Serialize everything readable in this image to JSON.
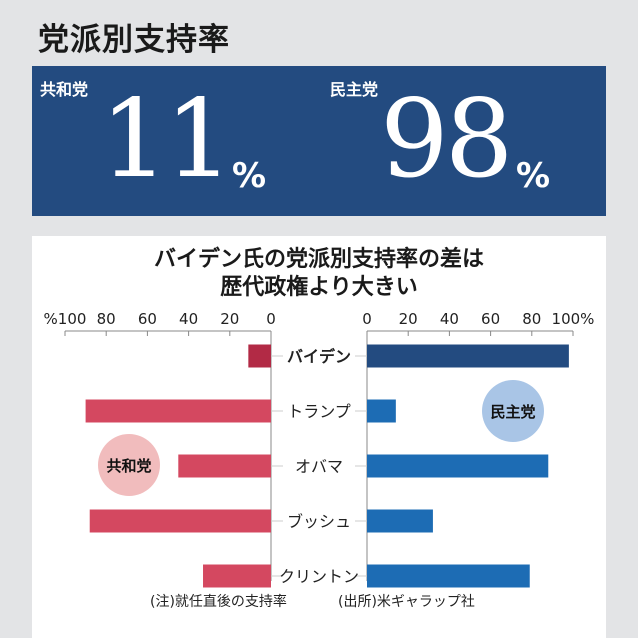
{
  "page_title": "党派別支持率",
  "stats": {
    "rep_label": "共和党",
    "rep_value": "11",
    "dem_label": "民主党",
    "dem_value": "98",
    "unit": "%"
  },
  "chart_title_line1": "バイデン氏の党派別支持率の差は",
  "chart_title_line2": "歴代政権より大きい",
  "colors": {
    "rep_biden": "#b22a45",
    "rep": "#d44860",
    "dem_biden": "#234b80",
    "dem": "#1d6cb4",
    "rep_bubble": "#f1bcbd",
    "dem_bubble": "#a9c5e6"
  },
  "bubbles": {
    "rep": "共和党",
    "dem": "民主党"
  },
  "note_left": "(注)就任直後の支持率",
  "note_right": "(出所)米ギャラップ社",
  "chart_data": {
    "type": "bar",
    "categories": [
      "バイデン",
      "トランプ",
      "オバマ",
      "ブッシュ",
      "クリントン"
    ],
    "series": [
      {
        "name": "共和党",
        "values": [
          11,
          90,
          45,
          88,
          33
        ]
      },
      {
        "name": "民主党",
        "values": [
          98,
          14,
          88,
          32,
          79
        ]
      }
    ],
    "left_axis": {
      "ticks": [
        100,
        80,
        60,
        40,
        20,
        0
      ],
      "tick_labels": [
        "%100",
        "80",
        "60",
        "40",
        "20",
        "0"
      ],
      "range": [
        0,
        100
      ]
    },
    "right_axis": {
      "ticks": [
        0,
        20,
        40,
        60,
        80,
        100
      ],
      "tick_labels": [
        "0",
        "20",
        "40",
        "60",
        "80",
        "100%"
      ],
      "range": [
        0,
        100
      ]
    }
  }
}
